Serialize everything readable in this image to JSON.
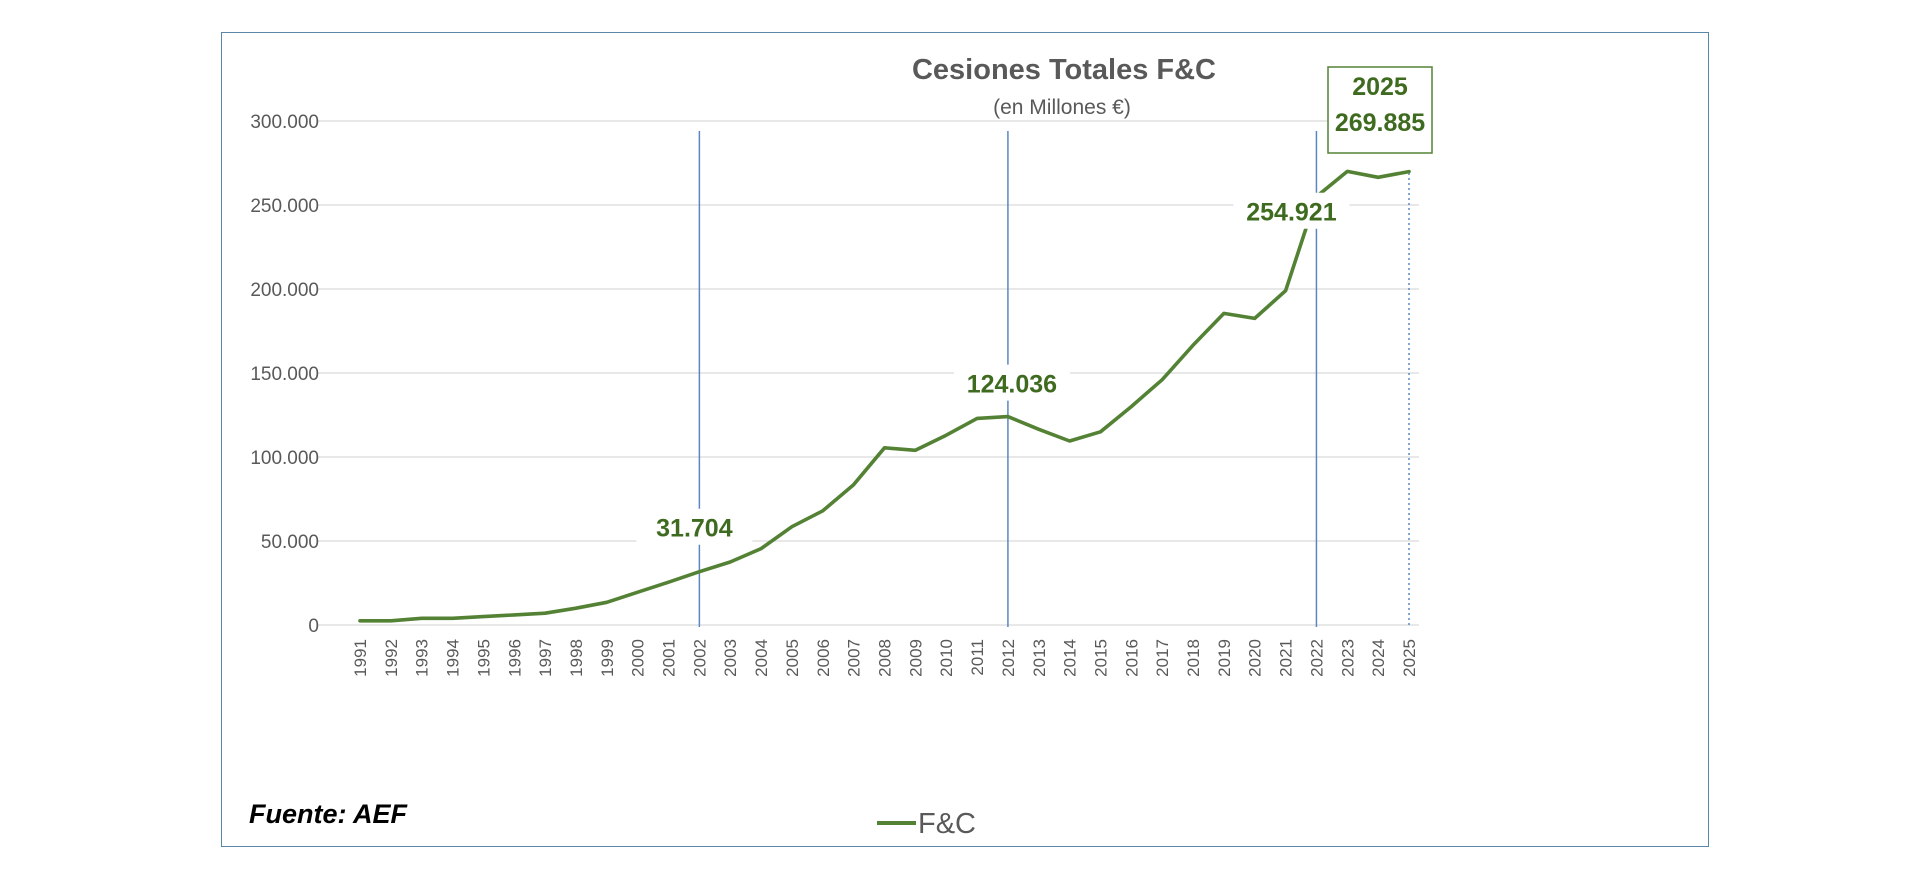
{
  "chart_data": {
    "type": "line",
    "title": "Cesiones Totales F&C",
    "subtitle": "(en Millones €)",
    "xlabel": "",
    "ylabel": "",
    "ylim": [
      0,
      300000
    ],
    "yticks": [
      0,
      50000,
      100000,
      150000,
      200000,
      250000,
      300000
    ],
    "ytick_labels": [
      "0",
      "50.000",
      "100.000",
      "150.000",
      "200.000",
      "250.000",
      "300.000"
    ],
    "grid": true,
    "legend_position": "bottom-center",
    "categories": [
      "1991",
      "1992",
      "1993",
      "1994",
      "1995",
      "1996",
      "1997",
      "1998",
      "1999",
      "2000",
      "2001",
      "2002",
      "2003",
      "2004",
      "2005",
      "2006",
      "2007",
      "2008",
      "2009",
      "2010",
      "2011",
      "2012",
      "2013",
      "2014",
      "2015",
      "2016",
      "2017",
      "2018",
      "2019",
      "2020",
      "2021",
      "2022",
      "2023",
      "2024",
      "2025"
    ],
    "series": [
      {
        "name": "F&C",
        "color": "#548235",
        "values": [
          2500,
          2500,
          4000,
          4000,
          5000,
          6000,
          7000,
          10000,
          13500,
          19500,
          25500,
          31704,
          37500,
          45500,
          58500,
          68000,
          83500,
          105500,
          104000,
          113000,
          123000,
          124036,
          116500,
          109500,
          115000,
          130000,
          146000,
          166500,
          185500,
          182500,
          199000,
          254921,
          270000,
          266500,
          269885
        ]
      }
    ],
    "reference_lines": [
      {
        "category": "2002",
        "style": "solid",
        "color": "#5b86c4"
      },
      {
        "category": "2012",
        "style": "solid",
        "color": "#5b86c4"
      },
      {
        "category": "2022",
        "style": "solid",
        "color": "#5b86c4"
      },
      {
        "category": "2025",
        "style": "dotted",
        "color": "#5b86c4"
      }
    ],
    "annotations": [
      {
        "category": "2002",
        "value": 31704,
        "text": "31.704"
      },
      {
        "category": "2012",
        "value": 124036,
        "text": "124.036"
      },
      {
        "category": "2022",
        "value": 254921,
        "text": "254.921"
      }
    ],
    "callout": {
      "category": "2025",
      "value": 269885,
      "year": "2025",
      "text": "269.885",
      "border_color": "#548235"
    },
    "source": "Fuente: AEF"
  }
}
